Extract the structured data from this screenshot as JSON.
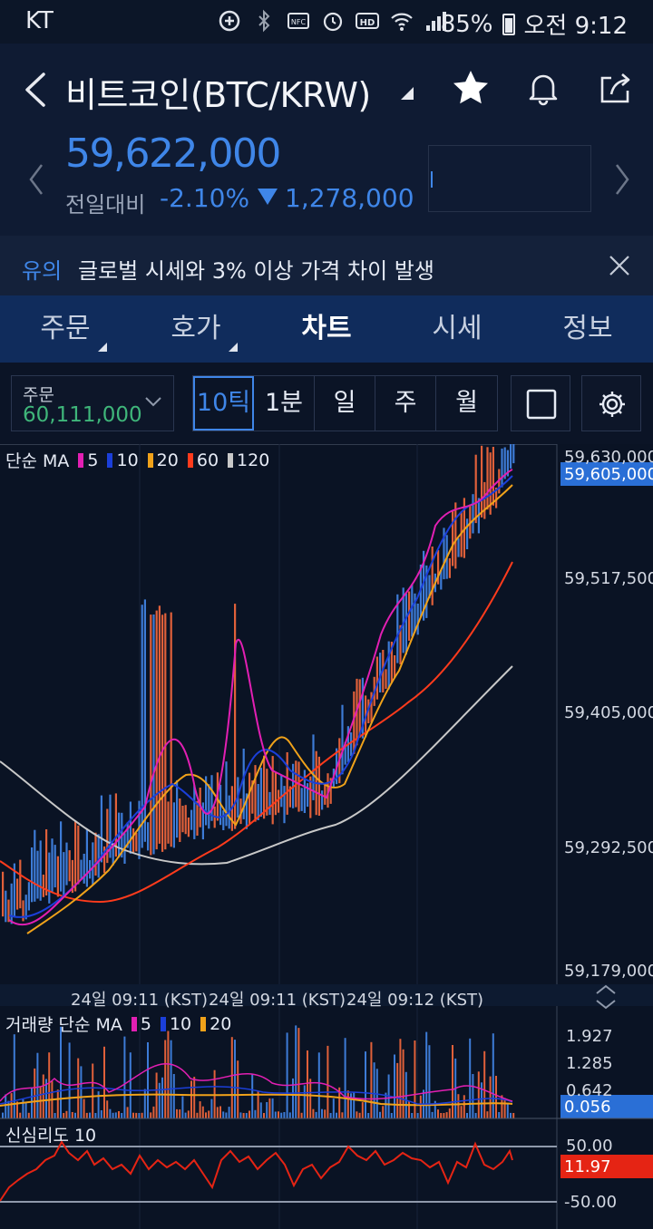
{
  "status_bar": {
    "carrier": "KT",
    "battery": "85%",
    "time": "오전 9:12",
    "icons": [
      "location-plus-icon",
      "bluetooth-icon",
      "nfc-icon",
      "alarm-icon",
      "hd-icon",
      "wifi-icon",
      "signal-icon",
      "battery-icon"
    ]
  },
  "header": {
    "title": "비트코인(BTC/KRW)",
    "price": "59,622,000",
    "change_label": "전일대비",
    "change_pct": "-2.10%",
    "change_amount": "1,278,000",
    "price_color": "#3f86e8"
  },
  "notice": {
    "tag": "유의",
    "text": "글로벌 시세와 3% 이상 가격 차이 발생"
  },
  "tabs": [
    {
      "label": "주문",
      "has_menu": true
    },
    {
      "label": "호가",
      "has_menu": true
    },
    {
      "label": "차트",
      "active": true
    },
    {
      "label": "시세"
    },
    {
      "label": "정보"
    }
  ],
  "toolbar": {
    "order_label": "주문",
    "order_value": "60,111,000",
    "intervals": [
      "10틱",
      "1분",
      "일",
      "주",
      "월"
    ],
    "active_interval": "10틱"
  },
  "main_chart": {
    "legend_label": "단순 MA",
    "ma_periods": [
      "5",
      "10",
      "20",
      "60",
      "120"
    ],
    "ma_colors": [
      "#e21fb3",
      "#1b3fd9",
      "#f0a21a",
      "#ff3b1c",
      "#c8c8c8"
    ],
    "y_ticks": [
      "59,630,000",
      "59,517,500",
      "59,405,000",
      "59,292,500",
      "59,179,000"
    ],
    "current_price_tag": "59,605,000",
    "x_labels": [
      "24일 09:11 (KST)",
      "24일 09:11 (KST)",
      "24일 09:12 (KST)"
    ],
    "up_color": "#e0603a",
    "down_color": "#3d7bd6"
  },
  "volume_chart": {
    "legend_label": "거래량 단순 MA",
    "ma_periods": [
      "5",
      "10",
      "20"
    ],
    "y_ticks": [
      "1.927",
      "1.285",
      "0.642"
    ],
    "current_tag": "0.056"
  },
  "psy_chart": {
    "legend_label": "신심리도 10",
    "y_ticks": [
      "50.00",
      "-50.00"
    ],
    "current_tag": "11.97"
  }
}
